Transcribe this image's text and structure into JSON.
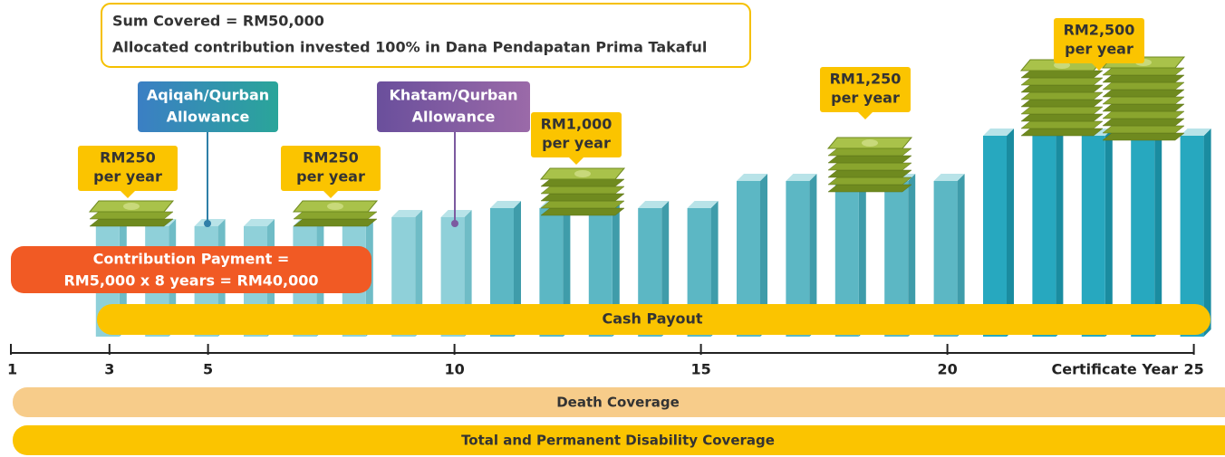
{
  "info": {
    "lines": [
      "Sum Covered = RM50,000",
      "Allocated contribution invested 100% in Dana Pendapatan Prima Takaful"
    ]
  },
  "payouts": [
    {
      "amount": "RM250",
      "unit": "per year"
    },
    {
      "amount": "RM250",
      "unit": "per year"
    },
    {
      "amount": "RM1,000",
      "unit": "per year"
    },
    {
      "amount": "RM1,250",
      "unit": "per year"
    },
    {
      "amount": "RM2,500",
      "unit": "per year"
    }
  ],
  "allowances": [
    {
      "lines": [
        "Aqiqah/Qurban",
        "Allowance"
      ]
    },
    {
      "lines": [
        "Khatam/Qurban",
        "Allowance"
      ]
    }
  ],
  "contribution": {
    "lines": [
      "Contribution Payment =",
      "RM5,000 x 8 years = RM40,000"
    ]
  },
  "cash_payout": "Cash Payout",
  "axis": {
    "ticks": [
      1,
      3,
      5,
      10,
      15,
      20,
      25
    ],
    "title": "Certificate Year"
  },
  "coverage": [
    "Death Coverage",
    "Total and Permanent Disability Coverage"
  ]
}
